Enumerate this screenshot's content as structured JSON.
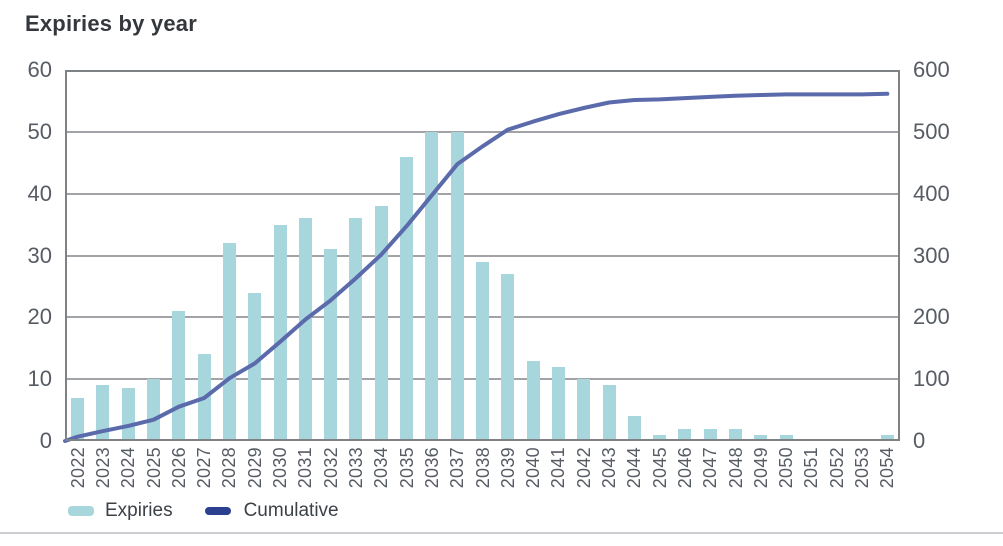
{
  "chart_data": {
    "type": "bar",
    "title": "Expiries by year",
    "categories": [
      "2022",
      "2023",
      "2024",
      "2025",
      "2026",
      "2027",
      "2028",
      "2029",
      "2030",
      "2031",
      "2032",
      "2033",
      "2034",
      "2035",
      "2036",
      "2037",
      "2038",
      "2039",
      "2040",
      "2041",
      "2042",
      "2043",
      "2044",
      "2045",
      "2046",
      "2047",
      "2048",
      "2049",
      "2050",
      "2051",
      "2052",
      "2053",
      "2054"
    ],
    "series": [
      {
        "name": "Expiries",
        "type": "bar",
        "axis": "left",
        "color": "#a7d7dd",
        "values": [
          7,
          9,
          8.5,
          10,
          21,
          14,
          32,
          24,
          35,
          36,
          31,
          36,
          38,
          46,
          50,
          50,
          29,
          27,
          13,
          12,
          10,
          9,
          4,
          1,
          2,
          2,
          2,
          1,
          1,
          0,
          0,
          0,
          1
        ]
      },
      {
        "name": "Cumulative",
        "type": "line",
        "axis": "right",
        "color": "#5a6aab",
        "legend_color": "#2c4090",
        "values": [
          7,
          16,
          24.5,
          34.5,
          55.5,
          69.5,
          101.5,
          125.5,
          160.5,
          196.5,
          227.5,
          263.5,
          301.5,
          347.5,
          397.5,
          447.5,
          476.5,
          503.5,
          516.5,
          528.5,
          538.5,
          547.5,
          551.5,
          552.5,
          554.5,
          556.5,
          558.5,
          559.5,
          560.5,
          560.5,
          560.5,
          560.5,
          561.5
        ]
      }
    ],
    "left_axis": {
      "range": [
        0,
        60
      ],
      "ticks": [
        60,
        50,
        40,
        30,
        20,
        10,
        0
      ]
    },
    "right_axis": {
      "range": [
        0,
        600
      ],
      "ticks": [
        600,
        500,
        400,
        300,
        200,
        100,
        0
      ]
    },
    "grid": true,
    "legend_position": "bottom-left",
    "x_tick_rotation": 90
  },
  "colors": {
    "background": "#ffffff",
    "grid": "#a1a3a6",
    "frame": "#7f8285",
    "axis_text": "#575c64",
    "title_text": "#34383d",
    "legend_text": "#3c4147",
    "divider": "#cbcdd0"
  }
}
